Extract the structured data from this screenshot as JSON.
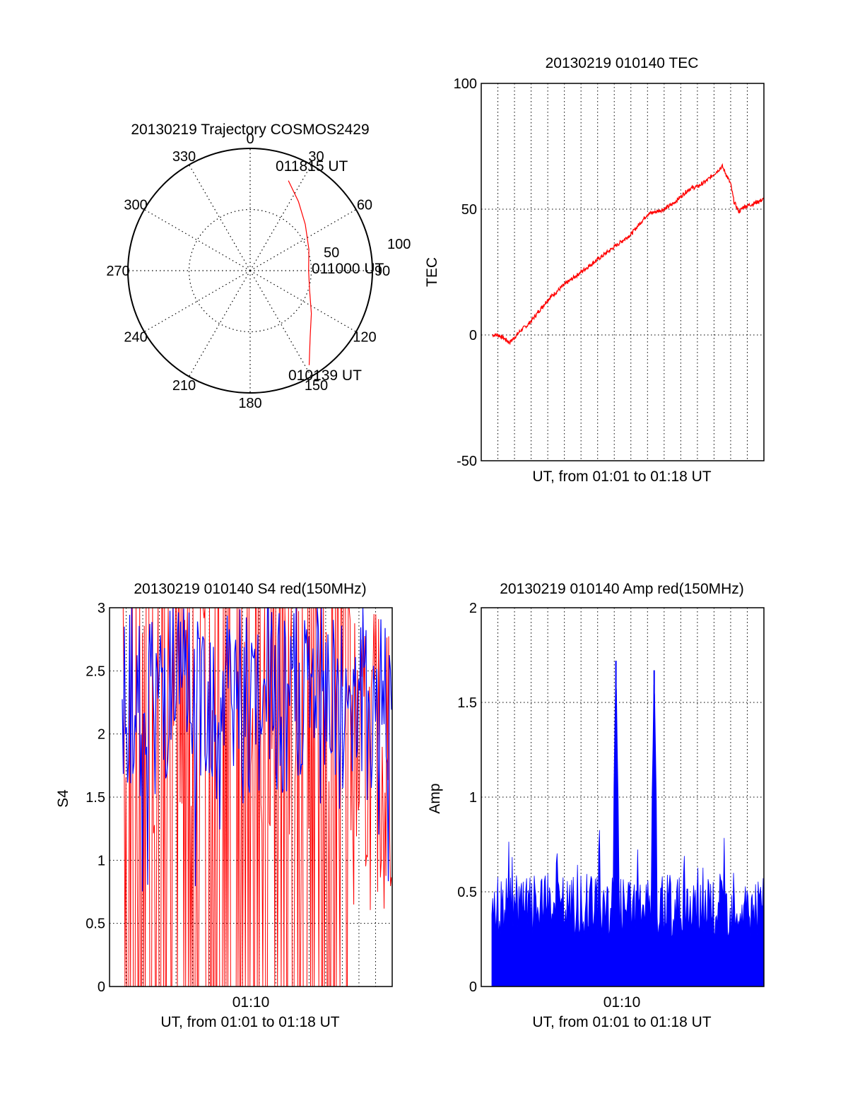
{
  "colors": {
    "red": "#ff0000",
    "blue": "#0000ff",
    "axis": "#000000",
    "grid": "#000000"
  },
  "polar": {
    "title": "20130219 Trajectory COSMOS2429",
    "angle_labels": [
      "0",
      "30",
      "60",
      "90",
      "120",
      "150",
      "180",
      "210",
      "240",
      "270",
      "300",
      "330"
    ],
    "radial_labels": [
      "50",
      "100"
    ],
    "time_labels": [
      {
        "text": "011815 UT",
        "az": 23,
        "el": 18
      },
      {
        "text": "011000 UT",
        "az": 90,
        "el": 48
      },
      {
        "text": "010139 UT",
        "az": 148,
        "el": 8
      }
    ],
    "track": [
      {
        "az": 23,
        "el": 18
      },
      {
        "az": 35,
        "el": 28
      },
      {
        "az": 50,
        "el": 37
      },
      {
        "az": 70,
        "el": 44
      },
      {
        "az": 90,
        "el": 47
      },
      {
        "az": 108,
        "el": 44
      },
      {
        "az": 125,
        "el": 35
      },
      {
        "az": 138,
        "el": 24
      },
      {
        "az": 148,
        "el": 8
      }
    ]
  },
  "chart_data": [
    {
      "id": "tec",
      "type": "line",
      "title": "20130219 010140 TEC",
      "xlabel": "UT, from 01:01 to 01:18 UT",
      "ylabel": "TEC",
      "ylim": [
        -50,
        100
      ],
      "yticks": [
        "-50",
        "0",
        "50",
        "100"
      ],
      "x_minutes": [
        1.67,
        2.0,
        2.3,
        2.7,
        3.0,
        3.4,
        3.8,
        4.3,
        5.0,
        6.0,
        7.0,
        8.0,
        9.0,
        10.0,
        11.0,
        12.0,
        12.5,
        13.0,
        13.5,
        14.0,
        14.5,
        15.0,
        15.5,
        16.0,
        16.2,
        16.5,
        16.8,
        17.3,
        18.0
      ],
      "values": [
        0,
        0,
        -1,
        -3,
        -1,
        2,
        4,
        8,
        14,
        20,
        25,
        30,
        35,
        40,
        48,
        50,
        52,
        55,
        58,
        59,
        61,
        64,
        67,
        60,
        53,
        49,
        51,
        52,
        54
      ],
      "series_color": "red"
    },
    {
      "id": "s4",
      "type": "line",
      "title": "20130219 010140 S4 red(150MHz)",
      "xlabel": "UT, from 01:01 to 01:18 UT",
      "ylabel": "S4",
      "ylim": [
        0,
        3
      ],
      "yticks": [
        "0",
        "0.5",
        "1",
        "1.5",
        "2",
        "2.5",
        "3"
      ],
      "xtick_label": "01:10",
      "series": [
        {
          "name": "",
          "color": "red"
        },
        {
          "name": "",
          "color": "blue"
        }
      ]
    },
    {
      "id": "amp",
      "type": "line",
      "title": "20130219 010140 Amp red(150MHz)",
      "xlabel": "UT, from 01:01 to 01:18 UT",
      "ylabel": "Amp",
      "ylim": [
        0,
        2
      ],
      "yticks": [
        "0",
        "0.5",
        "1",
        "1.5",
        "2"
      ],
      "xtick_label": "01:10",
      "peaks": [
        {
          "x_minutes": 9.1,
          "value": 1.72
        },
        {
          "x_minutes": 11.4,
          "value": 1.67
        }
      ],
      "baseline_range": [
        0.25,
        0.6
      ]
    }
  ]
}
